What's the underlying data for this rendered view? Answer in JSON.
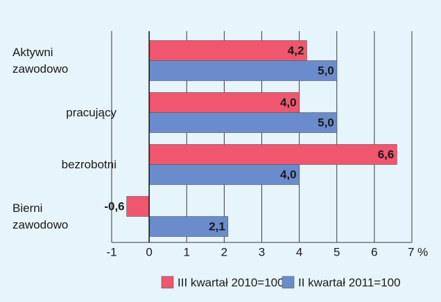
{
  "chart_data": {
    "type": "hbar",
    "categories": [
      "Aktywni zawodowo",
      "pracujący",
      "bezrobotni",
      "Bierni zawodowo"
    ],
    "series": [
      {
        "name": "III kwartał 2010=100",
        "color": "#f0566e",
        "values": [
          4.2,
          4.0,
          6.6,
          -0.6
        ],
        "value_labels": [
          "4,2",
          "4,0",
          "6,6",
          "-0,6"
        ]
      },
      {
        "name": "II kwartał 2011=100",
        "color": "#6b8ccc",
        "values": [
          5.0,
          5.0,
          4.0,
          2.1
        ],
        "value_labels": [
          "5,0",
          "5,0",
          "4,0",
          "2,1"
        ]
      }
    ],
    "xlim": [
      -1,
      7
    ],
    "xticks": [
      -1,
      0,
      1,
      2,
      3,
      4,
      5,
      6,
      {
        "value": 7,
        "label": "7 %"
      }
    ],
    "grid": true,
    "legend": "bottom"
  }
}
